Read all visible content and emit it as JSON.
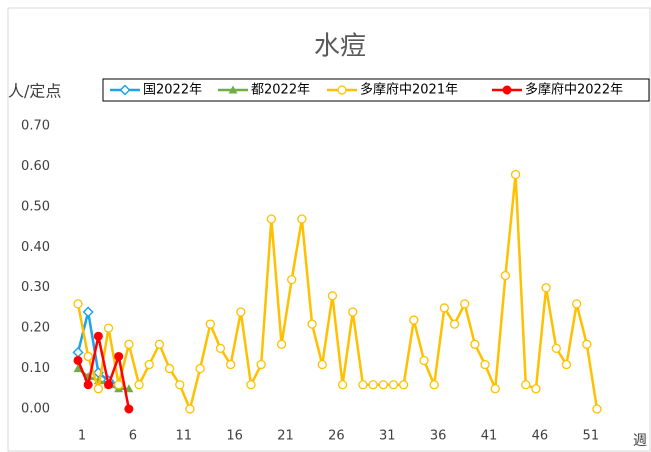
{
  "chart_data": {
    "type": "line",
    "title": "水痘",
    "y_label": "人/定点",
    "x_label": "週",
    "x": [
      1,
      2,
      3,
      4,
      5,
      6,
      7,
      8,
      9,
      10,
      11,
      12,
      13,
      14,
      15,
      16,
      17,
      18,
      19,
      20,
      21,
      22,
      23,
      24,
      25,
      26,
      27,
      28,
      29,
      30,
      31,
      32,
      33,
      34,
      35,
      36,
      37,
      38,
      39,
      40,
      41,
      42,
      43,
      44,
      45,
      46,
      47,
      48,
      49,
      50,
      51,
      52
    ],
    "xlim": [
      1,
      52
    ],
    "xticks": [
      1,
      6,
      11,
      16,
      21,
      26,
      31,
      36,
      41,
      46,
      51
    ],
    "ylim": [
      0,
      0.7
    ],
    "yticks": [
      {
        "value": 0,
        "label": "0.00"
      },
      {
        "value": 0.1,
        "label": "0.10"
      },
      {
        "value": 0.2,
        "label": "0.20"
      },
      {
        "value": 0.3,
        "label": "0.30"
      },
      {
        "value": 0.4,
        "label": "0.40"
      },
      {
        "value": 0.5,
        "label": "0.50"
      },
      {
        "value": 0.6,
        "label": "0.60"
      },
      {
        "value": 0.7,
        "label": "0.70"
      }
    ],
    "series": [
      {
        "name": "国2022年",
        "color": "#1fa3e8",
        "marker": "diamond",
        "values": [
          0.14,
          0.24,
          0.09,
          0.07,
          0.06,
          null,
          null,
          null,
          null,
          null,
          null,
          null,
          null,
          null,
          null,
          null,
          null,
          null,
          null,
          null,
          null,
          null,
          null,
          null,
          null,
          null,
          null,
          null,
          null,
          null,
          null,
          null,
          null,
          null,
          null,
          null,
          null,
          null,
          null,
          null,
          null,
          null,
          null,
          null,
          null,
          null,
          null,
          null,
          null,
          null,
          null,
          null
        ]
      },
      {
        "name": "都2022年",
        "color": "#70ad47",
        "marker": "triangle",
        "values": [
          0.1,
          0.08,
          0.07,
          0.06,
          0.05,
          0.05,
          null,
          null,
          null,
          null,
          null,
          null,
          null,
          null,
          null,
          null,
          null,
          null,
          null,
          null,
          null,
          null,
          null,
          null,
          null,
          null,
          null,
          null,
          null,
          null,
          null,
          null,
          null,
          null,
          null,
          null,
          null,
          null,
          null,
          null,
          null,
          null,
          null,
          null,
          null,
          null,
          null,
          null,
          null,
          null,
          null,
          null
        ]
      },
      {
        "name": "多摩府中2021年",
        "color": "#ffc000",
        "marker": "circle-open",
        "values": [
          0.26,
          0.13,
          0.05,
          0.2,
          0.06,
          0.16,
          0.06,
          0.11,
          0.16,
          0.1,
          0.06,
          0.0,
          0.1,
          0.21,
          0.15,
          0.11,
          0.24,
          0.06,
          0.11,
          0.47,
          0.16,
          0.32,
          0.47,
          0.21,
          0.11,
          0.28,
          0.06,
          0.24,
          0.06,
          0.06,
          0.06,
          0.06,
          0.06,
          0.22,
          0.12,
          0.06,
          0.25,
          0.21,
          0.26,
          0.16,
          0.11,
          0.05,
          0.33,
          0.58,
          0.06,
          0.05,
          0.3,
          0.15,
          0.11,
          0.26,
          0.16,
          0.0
        ]
      },
      {
        "name": "多摩府中2022年",
        "color": "#ff0000",
        "marker": "circle",
        "values": [
          0.12,
          0.06,
          0.18,
          0.06,
          0.13,
          0.0,
          null,
          null,
          null,
          null,
          null,
          null,
          null,
          null,
          null,
          null,
          null,
          null,
          null,
          null,
          null,
          null,
          null,
          null,
          null,
          null,
          null,
          null,
          null,
          null,
          null,
          null,
          null,
          null,
          null,
          null,
          null,
          null,
          null,
          null,
          null,
          null,
          null,
          null,
          null,
          null,
          null,
          null,
          null,
          null,
          null,
          null
        ]
      }
    ]
  }
}
